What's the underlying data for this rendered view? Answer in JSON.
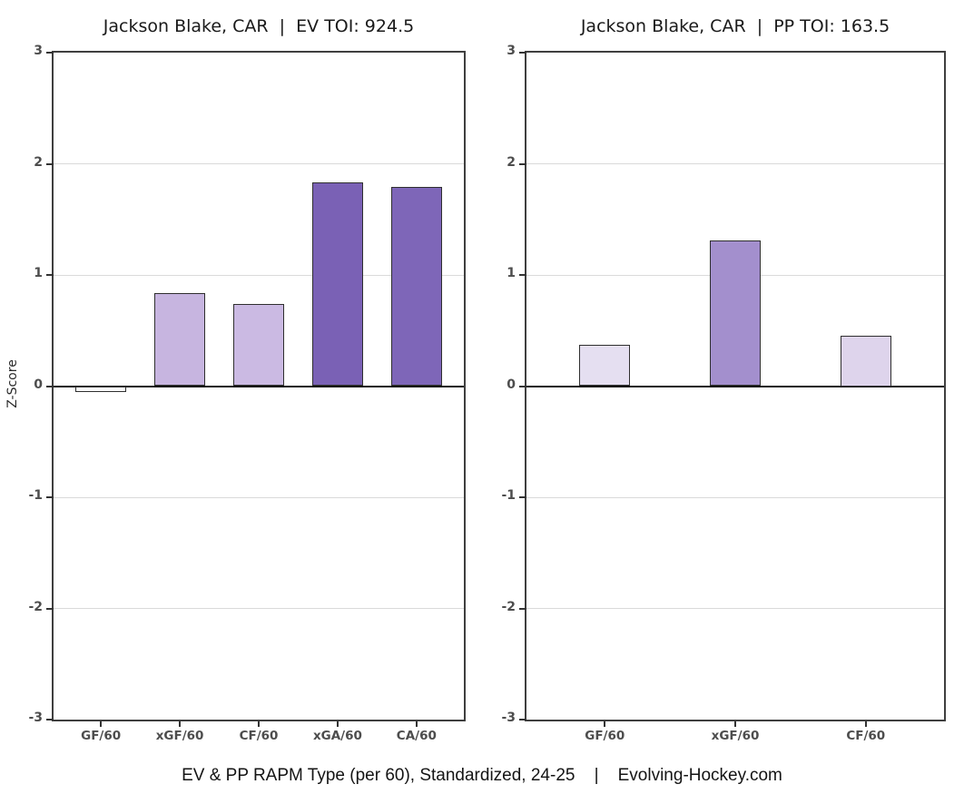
{
  "caption": {
    "text": "EV & PP RAPM Type (per 60), Standardized, 24-25    |    Evolving-Hockey.com"
  },
  "colors": {
    "background": "#ffffff",
    "panel_border": "#3f3f3f",
    "grid_line": "#dadada",
    "zero_line": "#161616",
    "tick_mark": "#333333",
    "tick_label": "#4d4d4d",
    "title": "#1a1a1a",
    "bar_border": "#2f2f2f"
  },
  "chart_data": [
    {
      "type": "bar",
      "title": "Jackson Blake, CAR  |  EV TOI: 924.5",
      "player": "Jackson Blake",
      "team": "CAR",
      "strength": "EV",
      "toi": 924.5,
      "ylabel": "Z-Score",
      "xlabel": "",
      "ylim": [
        -3,
        3
      ],
      "yticks": [
        3,
        2,
        1,
        0,
        -1,
        -2,
        -3
      ],
      "grid": true,
      "legend_position": "none",
      "categories": [
        "GF/60",
        "xGF/60",
        "CF/60",
        "xGA/60",
        "CA/60"
      ],
      "values": [
        -0.05,
        0.84,
        0.74,
        1.83,
        1.79
      ],
      "bar_colors": [
        "#fdfdfe",
        "#c7b5e0",
        "#cbbae3",
        "#7a61b5",
        "#7e66b8"
      ]
    },
    {
      "type": "bar",
      "title": "Jackson Blake, CAR  |  PP TOI: 163.5",
      "player": "Jackson Blake",
      "team": "CAR",
      "strength": "PP",
      "toi": 163.5,
      "ylabel": "",
      "xlabel": "",
      "ylim": [
        -3,
        3
      ],
      "yticks": [
        3,
        2,
        1,
        0,
        -1,
        -2,
        -3
      ],
      "grid": true,
      "legend_position": "none",
      "categories": [
        "GF/60",
        "xGF/60",
        "CF/60"
      ],
      "values": [
        0.37,
        1.31,
        0.45
      ],
      "bar_colors": [
        "#e5dff1",
        "#a38fcd",
        "#ded4ec"
      ]
    }
  ]
}
